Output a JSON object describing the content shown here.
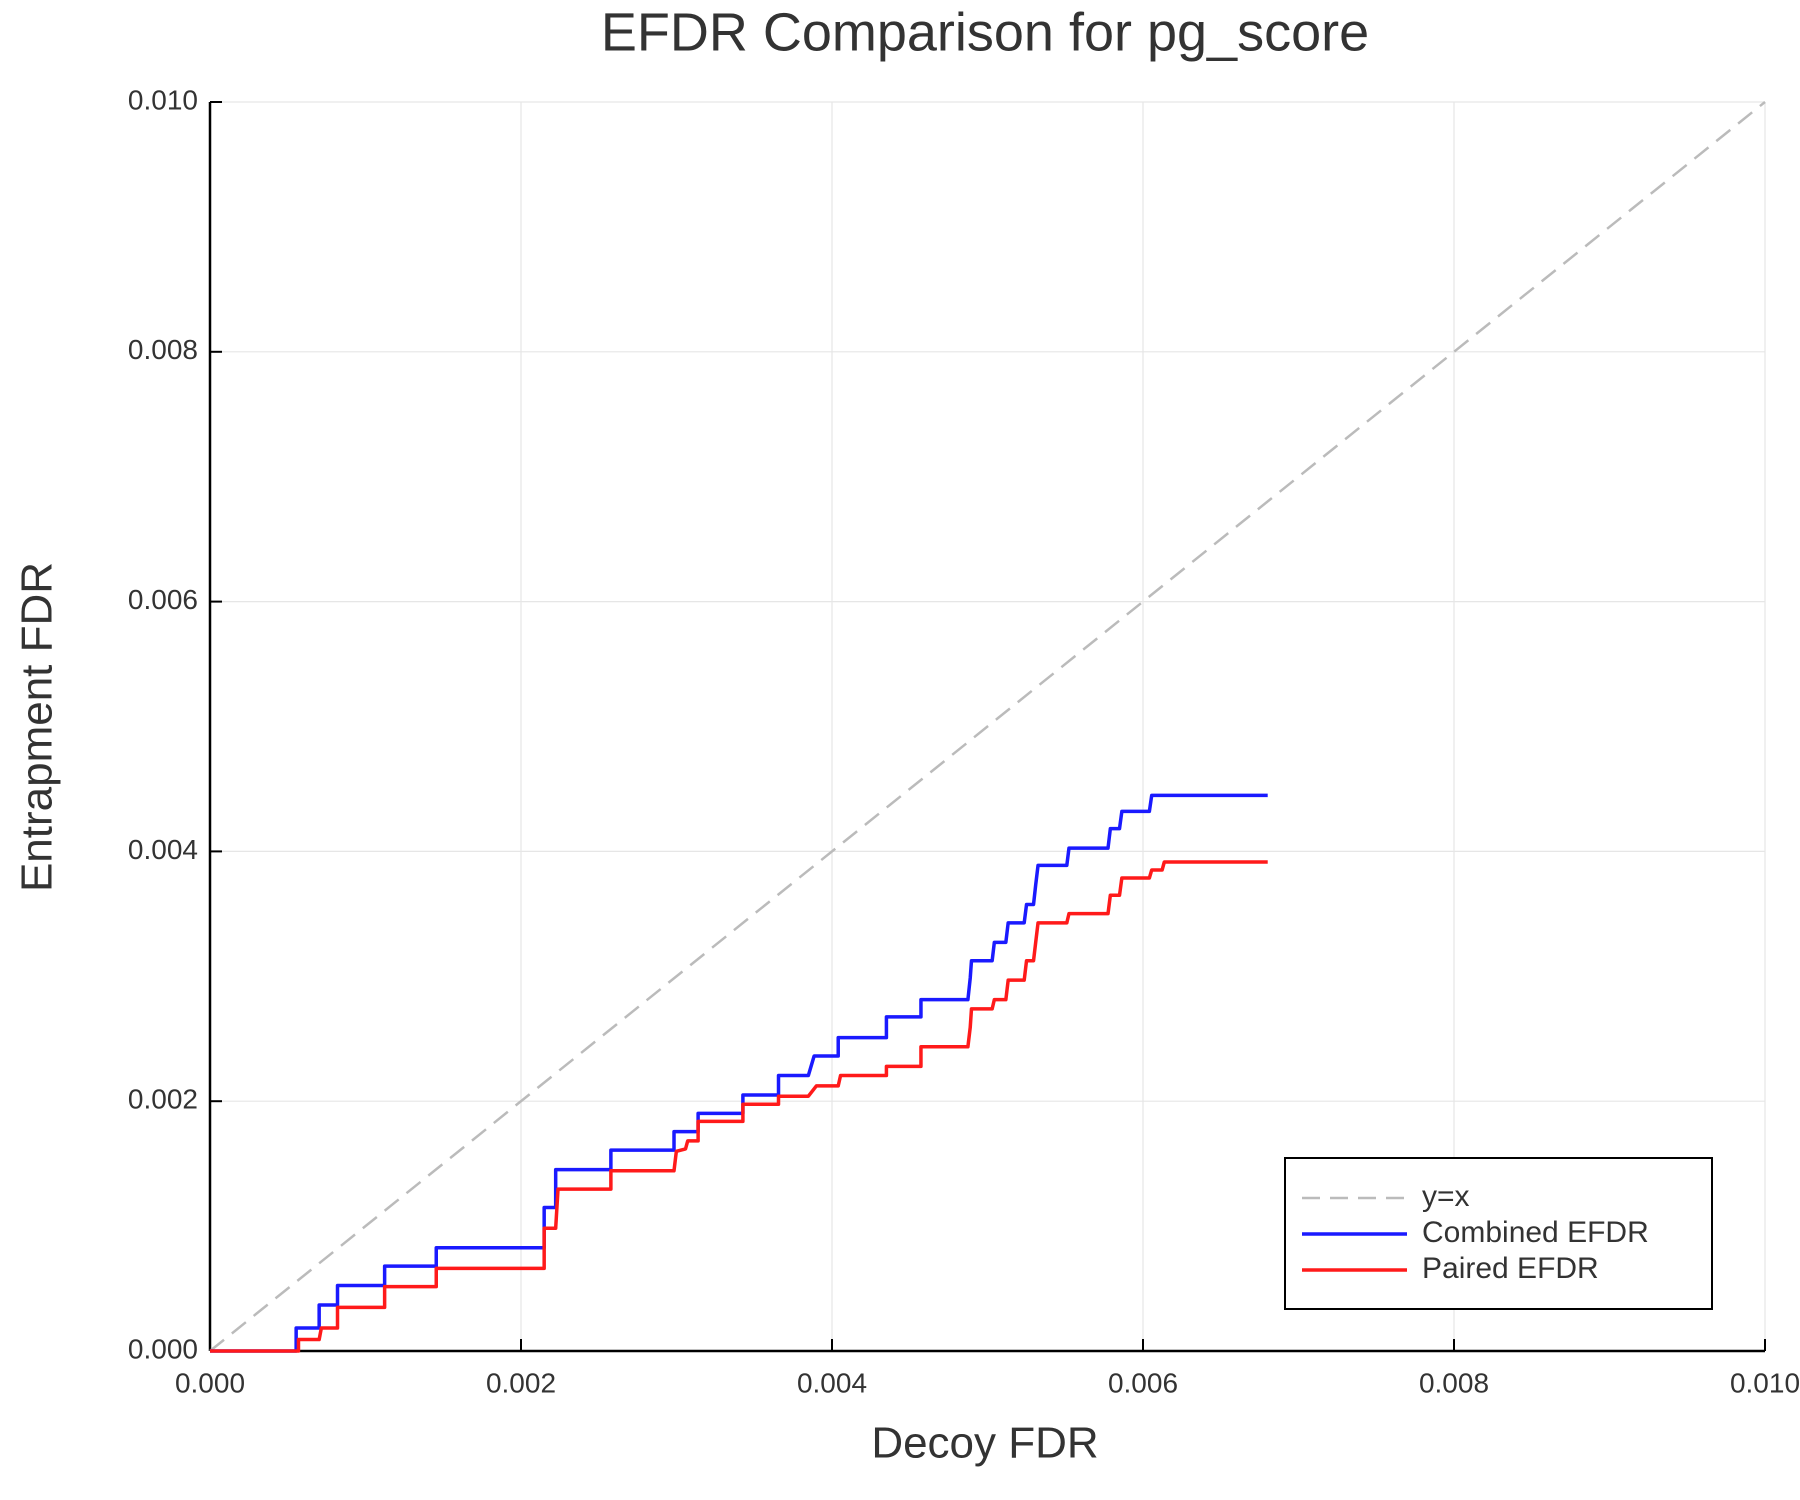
{
  "chart_data": {
    "type": "line",
    "title": "EFDR Comparison for pg_score",
    "x_label": "Decoy FDR",
    "y_label": "Entrapment FDR",
    "xlim": [
      0,
      0.01
    ],
    "ylim": [
      0,
      0.01
    ],
    "xticks": [
      {
        "value": 0,
        "label": "0.000"
      },
      {
        "value": 0.002,
        "label": "0.002"
      },
      {
        "value": 0.004,
        "label": "0.004"
      },
      {
        "value": 0.006,
        "label": "0.006"
      },
      {
        "value": 0.008,
        "label": "0.008"
      },
      {
        "value": 0.01,
        "label": "0.010"
      }
    ],
    "yticks": [
      {
        "value": 0,
        "label": "0.000"
      },
      {
        "value": 0.002,
        "label": "0.002"
      },
      {
        "value": 0.004,
        "label": "0.004"
      },
      {
        "value": 0.006,
        "label": "0.006"
      },
      {
        "value": 0.008,
        "label": "0.008"
      },
      {
        "value": 0.01,
        "label": "0.010"
      }
    ],
    "grid": true,
    "legend": "bottom right",
    "series": [
      {
        "name": "y=x",
        "color": "#bbbbbb",
        "dashed": true,
        "x": [
          0,
          0.01
        ],
        "values": [
          0,
          0.01
        ]
      },
      {
        "name": "Combined EFDR",
        "color": "#1a1aff",
        "x": [
          0,
          0.000554,
          0.000554,
          0.000702,
          0.000702,
          0.00082,
          0.00082,
          0.001123,
          0.001123,
          0.001455,
          0.001455,
          0.002149,
          0.002149,
          0.002223,
          0.002223,
          0.002578,
          0.002578,
          0.002984,
          0.002984,
          0.003139,
          0.003139,
          0.003427,
          0.003427,
          0.003656,
          0.003656,
          0.003848,
          0.003885,
          0.00404,
          0.00404,
          0.00435,
          0.00435,
          0.004572,
          0.004572,
          0.004874,
          0.004889,
          0.004897,
          0.00503,
          0.005044,
          0.005118,
          0.005133,
          0.005236,
          0.005251,
          0.005296,
          0.00531,
          0.005325,
          0.00551,
          0.005524,
          0.005775,
          0.00579,
          0.005849,
          0.005864,
          0.006041,
          0.006056,
          0.006802
        ],
        "values": [
          0,
          0,
          0.000184,
          0.000184,
          0.000368,
          0.000368,
          0.000524,
          0.000524,
          0.00068,
          0.00068,
          0.000827,
          0.000827,
          0.001149,
          0.001149,
          0.001452,
          0.001452,
          0.001608,
          0.001608,
          0.001756,
          0.001756,
          0.001903,
          0.001903,
          0.00205,
          0.00205,
          0.002206,
          0.002206,
          0.002362,
          0.002362,
          0.002509,
          0.002509,
          0.002675,
          0.002675,
          0.002813,
          0.002813,
          0.002987,
          0.003125,
          0.003125,
          0.003272,
          0.003272,
          0.003428,
          0.003428,
          0.003575,
          0.003575,
          0.003732,
          0.003888,
          0.003888,
          0.004026,
          0.004026,
          0.004182,
          0.004182,
          0.00432,
          0.00432,
          0.004449,
          0.004449
        ]
      },
      {
        "name": "Paired EFDR",
        "color": "#ff1a1a",
        "x": [
          0,
          0.000569,
          0.000569,
          0.000702,
          0.000716,
          0.00082,
          0.00082,
          0.001123,
          0.001123,
          0.001455,
          0.001455,
          0.002149,
          0.002149,
          0.002223,
          0.002238,
          0.002578,
          0.002578,
          0.002984,
          0.002999,
          0.003058,
          0.003072,
          0.003139,
          0.003139,
          0.003427,
          0.003427,
          0.003656,
          0.003656,
          0.003848,
          0.0039,
          0.00404,
          0.004055,
          0.00435,
          0.00435,
          0.004572,
          0.004572,
          0.004874,
          0.004889,
          0.004897,
          0.00503,
          0.005044,
          0.005118,
          0.005133,
          0.005236,
          0.005251,
          0.005296,
          0.00531,
          0.005325,
          0.00551,
          0.005524,
          0.005775,
          0.00579,
          0.005849,
          0.005864,
          0.006041,
          0.006056,
          0.006123,
          0.006137,
          0.006802
        ],
        "values": [
          0,
          0,
          9.2e-05,
          9.2e-05,
          0.000184,
          0.000184,
          0.000349,
          0.000349,
          0.000515,
          0.000515,
          0.000662,
          0.000662,
          0.000983,
          0.000983,
          0.001296,
          0.001296,
          0.001443,
          0.001443,
          0.001599,
          0.001618,
          0.001682,
          0.001682,
          0.001838,
          0.001838,
          0.001976,
          0.001976,
          0.00204,
          0.00204,
          0.002123,
          0.002123,
          0.002206,
          0.002206,
          0.002279,
          0.002279,
          0.002436,
          0.002436,
          0.002592,
          0.002739,
          0.002739,
          0.002813,
          0.002813,
          0.002969,
          0.002969,
          0.003125,
          0.003125,
          0.003272,
          0.003428,
          0.003428,
          0.003502,
          0.003502,
          0.003649,
          0.003649,
          0.003787,
          0.003787,
          0.003851,
          0.003851,
          0.003915,
          0.003915
        ]
      }
    ]
  }
}
